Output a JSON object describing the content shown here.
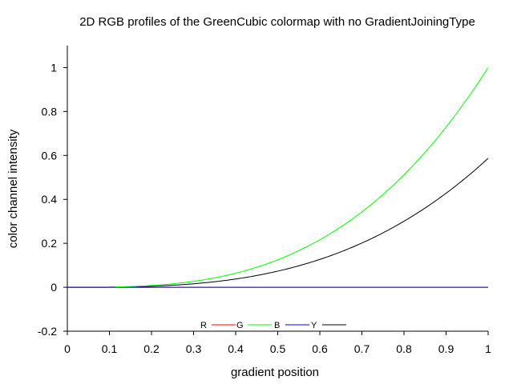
{
  "chart_data": {
    "type": "line",
    "title": "2D RGB profiles of the GreenCubic colormap with no GradientJoiningType",
    "xlabel": "gradient position",
    "ylabel": "color channel intensity",
    "xlim": [
      0,
      1
    ],
    "ylim": [
      -0.2,
      1.1
    ],
    "x_ticks": [
      "0",
      "0.1",
      "0.2",
      "0.3",
      "0.4",
      "0.5",
      "0.6",
      "0.7",
      "0.8",
      "0.9",
      "1"
    ],
    "y_ticks": [
      "-0.2",
      "0",
      "0.2",
      "0.4",
      "0.6",
      "0.8",
      "1"
    ],
    "grid": false,
    "legend_position": "bottom-center",
    "x": [
      0,
      0.1,
      0.115,
      0.2,
      0.3,
      0.4,
      0.5,
      0.6,
      0.7,
      0.8,
      0.9,
      1
    ],
    "series": [
      {
        "name": "R",
        "color": "#ff0000",
        "values": [
          0,
          0,
          0,
          0,
          0,
          0,
          0,
          0,
          0,
          0,
          0,
          0
        ]
      },
      {
        "name": "G",
        "color": "#00ff00",
        "values": [
          null,
          null,
          0,
          0.008,
          0.027,
          0.064,
          0.125,
          0.216,
          0.343,
          0.512,
          0.729,
          1.0
        ]
      },
      {
        "name": "B",
        "color": "#0000ff",
        "values": [
          0,
          0,
          0,
          0,
          0,
          0,
          0,
          0,
          0,
          0,
          0,
          0
        ]
      },
      {
        "name": "Y",
        "color": "#000000",
        "values": [
          0,
          0,
          0,
          0.005,
          0.016,
          0.037,
          0.073,
          0.126,
          0.2,
          0.298,
          0.425,
          0.587
        ]
      }
    ]
  }
}
